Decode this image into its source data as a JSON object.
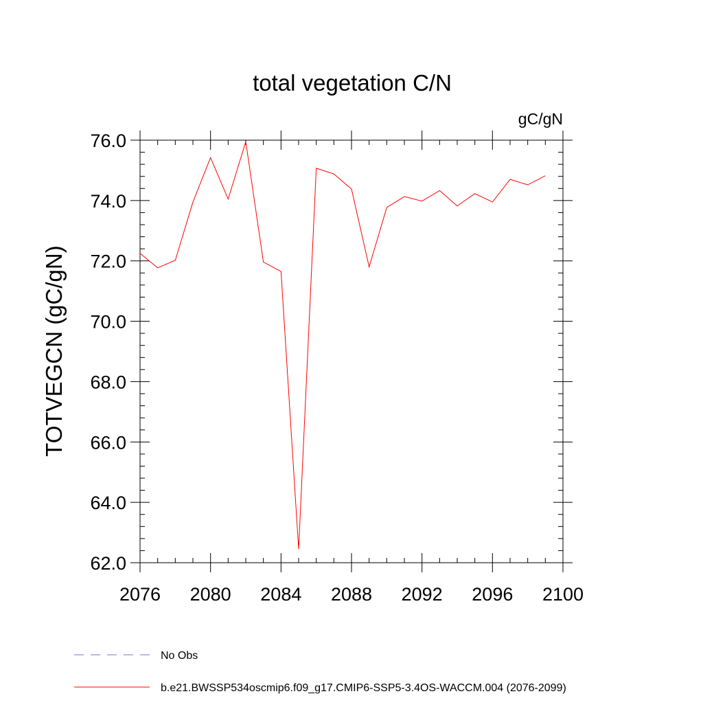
{
  "chart_data": {
    "type": "line",
    "title": "total vegetation C/N",
    "units": "gC/gN",
    "ylabel": "TOTVEGCN  (gC/gN)",
    "xlabel": "",
    "xlim": [
      2076,
      2100
    ],
    "ylim": [
      62.0,
      76.0
    ],
    "x_ticks": [
      2076,
      2080,
      2084,
      2088,
      2092,
      2096,
      2100
    ],
    "y_ticks": [
      "62.0",
      "64.0",
      "66.0",
      "68.0",
      "70.0",
      "72.0",
      "74.0",
      "76.0"
    ],
    "grid": false,
    "legend_position": "bottom",
    "series": [
      {
        "name": "b.e21.BWSSP534oscmip6.f09_g17.CMIP6-SSP5-3.4OS-WACCM.004 (2076-2099)",
        "color": "#ff0000",
        "style": "solid",
        "x": [
          2076,
          2077,
          2078,
          2079,
          2080,
          2081,
          2082,
          2083,
          2084,
          2085,
          2086,
          2087,
          2088,
          2089,
          2090,
          2091,
          2092,
          2093,
          2094,
          2095,
          2096,
          2097,
          2098,
          2099
        ],
        "y": [
          72.25,
          71.77,
          72.02,
          73.95,
          75.42,
          74.05,
          75.95,
          71.96,
          71.65,
          62.45,
          75.07,
          74.88,
          74.38,
          71.8,
          73.77,
          74.13,
          73.98,
          74.33,
          73.82,
          74.23,
          73.95,
          74.7,
          74.52,
          74.82
        ]
      },
      {
        "name": "No Obs",
        "color": "#7b6fc9",
        "style": "dashed",
        "x": [],
        "y": []
      }
    ]
  }
}
